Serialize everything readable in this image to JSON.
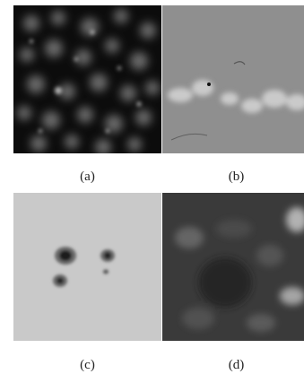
{
  "panels": [
    {
      "id": "a",
      "caption": "(a)"
    },
    {
      "id": "b",
      "caption": "(b)"
    },
    {
      "id": "c",
      "caption": "(c)"
    },
    {
      "id": "d",
      "caption": "(d)"
    }
  ],
  "colors": {
    "panel_a_bg": "#0c0c0c",
    "panel_b_bg": "#8f8f8f",
    "panel_c_bg": "#c9c9c9",
    "panel_d_bg": "#3a3a3a"
  }
}
